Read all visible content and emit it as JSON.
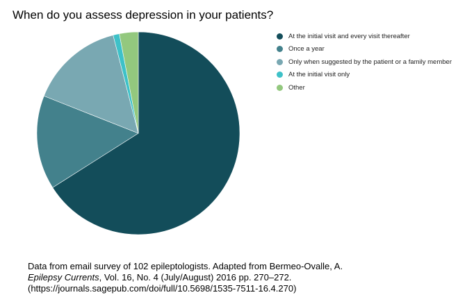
{
  "chart_data": {
    "type": "pie",
    "title": "When do you assess depression in your patients?",
    "categories": [
      "At the initial visit and every visit thereafter",
      "Once a year",
      "Only when suggested by the patient or a family member",
      "At the initial visit only",
      "Other"
    ],
    "values": [
      66,
      15,
      15,
      1,
      3
    ],
    "colors": [
      "#134d5a",
      "#43818c",
      "#79a8b2",
      "#3ec1c8",
      "#93c87e"
    ],
    "legend_position": "right"
  },
  "source": {
    "line1": "Data from email survey of 102 epileptologists. Adapted from Bermeo-Ovalle, A.",
    "journal": "Epilepsy Currents",
    "line2_rest": ",  Vol. 16, No. 4 (July/August) 2016 pp. 270–272.",
    "line3": "(https://journals.sagepub.com/doi/full/10.5698/1535-7511-16.4.270)"
  }
}
